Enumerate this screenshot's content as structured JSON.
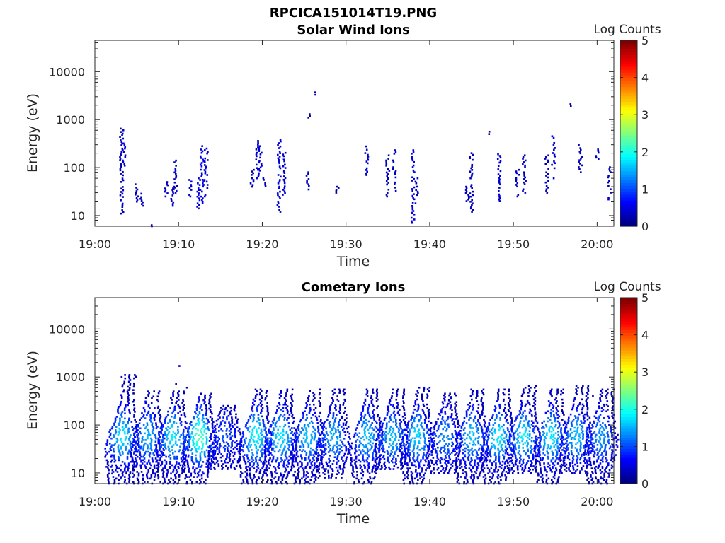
{
  "figure_title": "RPCICA151014T19.PNG",
  "chart_data": [
    {
      "type": "heatmap",
      "title": "Solar Wind Ions",
      "xlabel": "Time",
      "ylabel": "Energy (eV)",
      "x_range": [
        "19:00",
        "20:02"
      ],
      "x_ticks": [
        "19:00",
        "19:10",
        "19:20",
        "19:30",
        "19:40",
        "19:50",
        "20:00"
      ],
      "y_scale": "log",
      "y_range": [
        6,
        45000
      ],
      "y_ticks": [
        "10",
        "100",
        "1000",
        "10000"
      ],
      "colorbar": {
        "label": "Log Counts",
        "range": [
          0,
          5
        ],
        "ticks": [
          "0",
          "1",
          "2",
          "3",
          "4",
          "5"
        ],
        "colormap": "jet"
      },
      "grid": false,
      "blocks": [
        {
          "t": 3.2,
          "e": [
            11,
            650
          ],
          "c": 0.3
        },
        {
          "t": 3.5,
          "e": [
            110,
            320
          ],
          "c": 0.4
        },
        {
          "t": 5.0,
          "e": [
            18,
            45
          ],
          "c": 0.3
        },
        {
          "t": 5.6,
          "e": [
            16,
            40
          ],
          "c": 0.3
        },
        {
          "t": 6.7,
          "e": [
            6,
            6.3
          ],
          "c": 0.2
        },
        {
          "t": 8.5,
          "e": [
            25,
            50
          ],
          "c": 0.3
        },
        {
          "t": 9.3,
          "e": [
            16,
            40
          ],
          "c": 0.3
        },
        {
          "t": 9.6,
          "e": [
            30,
            140
          ],
          "c": 0.3
        },
        {
          "t": 11.4,
          "e": [
            25,
            60
          ],
          "c": 0.4
        },
        {
          "t": 12.4,
          "e": [
            12,
            60
          ],
          "c": 0.45
        },
        {
          "t": 12.8,
          "e": [
            18,
            280
          ],
          "c": 0.5
        },
        {
          "t": 13.3,
          "e": [
            25,
            250
          ],
          "c": 0.4
        },
        {
          "t": 18.8,
          "e": [
            40,
            90
          ],
          "c": 0.3
        },
        {
          "t": 19.4,
          "e": [
            60,
            360
          ],
          "c": 0.4
        },
        {
          "t": 19.8,
          "e": [
            80,
            280
          ],
          "c": 0.4
        },
        {
          "t": 20.2,
          "e": [
            35,
            60
          ],
          "c": 0.3
        },
        {
          "t": 22.0,
          "e": [
            12,
            380
          ],
          "c": 0.45
        },
        {
          "t": 22.6,
          "e": [
            25,
            220
          ],
          "c": 0.4
        },
        {
          "t": 25.4,
          "e": [
            35,
            80
          ],
          "c": 0.3
        },
        {
          "t": 25.5,
          "e": [
            1100,
            1300
          ],
          "c": 0.2
        },
        {
          "t": 26.4,
          "e": [
            3300,
            3700
          ],
          "c": 0.2
        },
        {
          "t": 29.0,
          "e": [
            30,
            40
          ],
          "c": 0.2
        },
        {
          "t": 32.5,
          "e": [
            70,
            300
          ],
          "c": 0.4
        },
        {
          "t": 35.0,
          "e": [
            25,
            180
          ],
          "c": 0.3
        },
        {
          "t": 35.8,
          "e": [
            30,
            230
          ],
          "c": 0.3
        },
        {
          "t": 38.0,
          "e": [
            6,
            230
          ],
          "c": 0.45
        },
        {
          "t": 38.5,
          "e": [
            18,
            60
          ],
          "c": 0.3
        },
        {
          "t": 44.5,
          "e": [
            20,
            40
          ],
          "c": 0.3
        },
        {
          "t": 45.0,
          "e": [
            12,
            200
          ],
          "c": 0.3
        },
        {
          "t": 47.2,
          "e": [
            500,
            560
          ],
          "c": 0.2
        },
        {
          "t": 48.3,
          "e": [
            20,
            190
          ],
          "c": 0.4
        },
        {
          "t": 50.5,
          "e": [
            25,
            90
          ],
          "c": 0.3
        },
        {
          "t": 51.3,
          "e": [
            30,
            180
          ],
          "c": 0.3
        },
        {
          "t": 54.0,
          "e": [
            30,
            180
          ],
          "c": 0.3
        },
        {
          "t": 54.8,
          "e": [
            60,
            450
          ],
          "c": 0.4
        },
        {
          "t": 56.7,
          "e": [
            1900,
            2100
          ],
          "c": 0.2
        },
        {
          "t": 58.0,
          "e": [
            80,
            300
          ],
          "c": 0.3
        },
        {
          "t": 60.0,
          "e": [
            150,
            300
          ],
          "c": 0.3
        },
        {
          "t": 61.5,
          "e": [
            20,
            120
          ],
          "c": 0.3
        }
      ]
    },
    {
      "type": "heatmap",
      "title": "Cometary Ions",
      "xlabel": "Time",
      "ylabel": "Energy (eV)",
      "x_range": [
        "19:00",
        "20:02"
      ],
      "x_ticks": [
        "19:00",
        "19:10",
        "19:20",
        "19:30",
        "19:40",
        "19:50",
        "20:00"
      ],
      "y_scale": "log",
      "y_range": [
        6,
        45000
      ],
      "y_ticks": [
        "10",
        "100",
        "1000",
        "10000"
      ],
      "colorbar": {
        "label": "Log Counts",
        "range": [
          0,
          5
        ],
        "ticks": [
          "0",
          "1",
          "2",
          "3",
          "4",
          "5"
        ],
        "colormap": "jet"
      },
      "grid": false,
      "bursts": [
        {
          "t": 3.3,
          "e": [
            6,
            1100
          ],
          "peak": 1.8
        },
        {
          "t": 6.3,
          "e": [
            6,
            500
          ],
          "peak": 1.5
        },
        {
          "t": 9.3,
          "e": [
            6,
            500
          ],
          "peak": 1.8
        },
        {
          "t": 12.5,
          "e": [
            6,
            450
          ],
          "peak": 2.3
        },
        {
          "t": 15.5,
          "e": [
            12,
            250
          ],
          "peak": 1.0
        },
        {
          "t": 19.2,
          "e": [
            6,
            550
          ],
          "peak": 1.9
        },
        {
          "t": 22.2,
          "e": [
            6,
            550
          ],
          "peak": 1.8
        },
        {
          "t": 25.5,
          "e": [
            6,
            550
          ],
          "peak": 1.6
        },
        {
          "t": 28.5,
          "e": [
            8,
            550
          ],
          "peak": 1.5
        },
        {
          "t": 32.5,
          "e": [
            6,
            550
          ],
          "peak": 1.6
        },
        {
          "t": 35.5,
          "e": [
            12,
            550
          ],
          "peak": 1.6
        },
        {
          "t": 38.5,
          "e": [
            6,
            600
          ],
          "peak": 1.7
        },
        {
          "t": 41.8,
          "e": [
            10,
            450
          ],
          "peak": 1.3
        },
        {
          "t": 45.0,
          "e": [
            6,
            550
          ],
          "peak": 1.6
        },
        {
          "t": 48.2,
          "e": [
            6,
            550
          ],
          "peak": 1.8
        },
        {
          "t": 51.2,
          "e": [
            10,
            650
          ],
          "peak": 1.8
        },
        {
          "t": 54.5,
          "e": [
            6,
            550
          ],
          "peak": 1.8
        },
        {
          "t": 57.5,
          "e": [
            10,
            650
          ],
          "peak": 1.6
        },
        {
          "t": 60.5,
          "e": [
            6,
            550
          ],
          "peak": 1.4
        }
      ],
      "specks": [
        {
          "t": 10.1,
          "e": 1700
        },
        {
          "t": 9.7,
          "e": 720
        },
        {
          "t": 11.0,
          "e": 600
        },
        {
          "t": 3.2,
          "e": 1000
        },
        {
          "t": 59.5,
          "e": 400
        }
      ]
    }
  ]
}
